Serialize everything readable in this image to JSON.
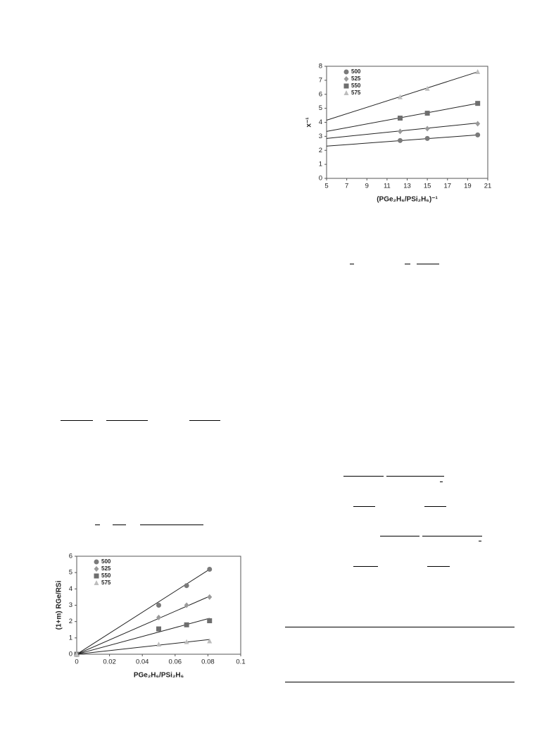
{
  "chart_data": [
    {
      "type": "scatter",
      "x_label": "(PGe₂H₆/PSi₂H₆)⁻¹",
      "y_label": "x⁻¹",
      "x": [
        12.3,
        15,
        20
      ],
      "xlim": [
        5,
        21
      ],
      "xticks": [
        5,
        7,
        9,
        11,
        13,
        15,
        17,
        19,
        21
      ],
      "ylim": [
        0,
        8
      ],
      "yticks": [
        0,
        1,
        2,
        3,
        4,
        5,
        6,
        7,
        8
      ],
      "legend": "upper-left",
      "series": [
        {
          "name": "500",
          "color": "#7a7a7a",
          "marker": "circle",
          "values": [
            2.7,
            2.85,
            3.1
          ],
          "fit_x": [
            5,
            20
          ],
          "fit_values": [
            2.3,
            3.1
          ]
        },
        {
          "name": "525",
          "color": "#9a9a9a",
          "marker": "diamond",
          "values": [
            3.35,
            3.55,
            3.9
          ],
          "fit_x": [
            5,
            20
          ],
          "fit_values": [
            2.85,
            3.95
          ]
        },
        {
          "name": "550",
          "color": "#6e6e6e",
          "marker": "square",
          "values": [
            4.3,
            4.65,
            5.35
          ],
          "fit_x": [
            5,
            20
          ],
          "fit_values": [
            3.35,
            5.35
          ]
        },
        {
          "name": "575",
          "color": "#bdbdbd",
          "marker": "triangle",
          "values": [
            5.8,
            6.4,
            7.6
          ],
          "fit_x": [
            5,
            20
          ],
          "fit_values": [
            4.15,
            7.6
          ]
        }
      ]
    },
    {
      "type": "scatter",
      "x_label": "PGe₂H₆/PSi₂H₆",
      "y_label": "(1+m) RGe/RSi",
      "x": [
        0,
        0.05,
        0.067,
        0.081
      ],
      "xlim": [
        0,
        0.1
      ],
      "xticks": [
        0,
        0.02,
        0.04,
        0.06,
        0.08,
        0.1
      ],
      "ylim": [
        0,
        6
      ],
      "yticks": [
        0,
        1,
        2,
        3,
        4,
        5,
        6
      ],
      "legend": "upper-left",
      "series": [
        {
          "name": "500",
          "color": "#7a7a7a",
          "marker": "circle",
          "values": [
            0,
            3.0,
            4.2,
            5.2
          ],
          "fit_x": [
            0,
            0.081
          ],
          "fit_values": [
            0,
            5.2
          ]
        },
        {
          "name": "525",
          "color": "#9a9a9a",
          "marker": "diamond",
          "values": [
            0,
            2.25,
            3.0,
            3.5
          ],
          "fit_x": [
            0,
            0.081
          ],
          "fit_values": [
            0,
            3.55
          ]
        },
        {
          "name": "550",
          "color": "#6e6e6e",
          "marker": "square",
          "values": [
            0,
            1.55,
            1.8,
            2.05
          ],
          "fit_x": [
            0,
            0.081
          ],
          "fit_values": [
            0,
            2.2
          ]
        },
        {
          "name": "575",
          "color": "#bdbdbd",
          "marker": "triangle",
          "values": [
            0,
            0.6,
            0.75,
            0.8
          ],
          "fit_x": [
            0,
            0.081
          ],
          "fit_values": [
            0,
            0.9
          ]
        }
      ]
    }
  ]
}
